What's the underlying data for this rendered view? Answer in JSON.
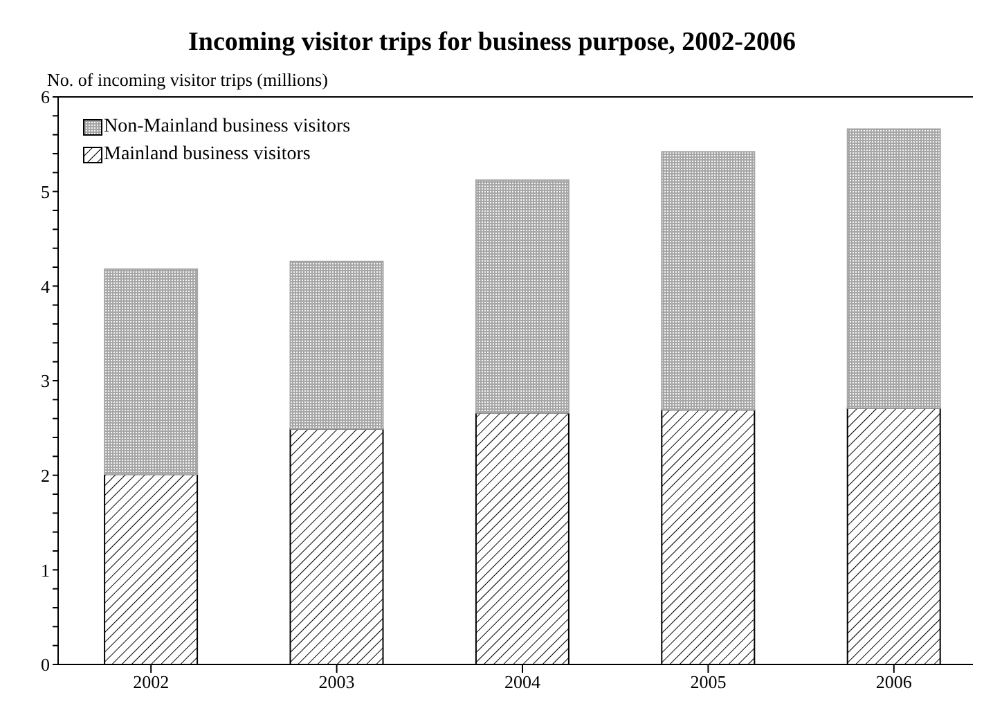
{
  "chart_data": {
    "type": "bar",
    "title": "Incoming visitor trips for business purpose, 2002-2006",
    "ylabel": "No. of incoming visitor trips (millions)",
    "categories": [
      "2002",
      "2003",
      "2004",
      "2005",
      "2006"
    ],
    "stacked": true,
    "series": [
      {
        "name": "Mainland business visitors",
        "color": "#000000",
        "values": [
          2.01,
          2.49,
          2.66,
          2.69,
          2.71
        ]
      },
      {
        "name": "Non-Mainland business visitors",
        "color": "#a6a6a6",
        "values": [
          2.17,
          1.77,
          2.46,
          2.73,
          2.95
        ]
      }
    ],
    "ylim": [
      0,
      6
    ],
    "yticks": [
      0,
      {
        "value": 0.2,
        "label": null
      },
      {
        "value": 0.4,
        "label": null
      },
      {
        "value": 0.6,
        "label": null
      },
      {
        "value": 0.8,
        "label": null
      },
      1,
      {
        "value": 1.2,
        "label": null
      },
      {
        "value": 1.4,
        "label": null
      },
      {
        "value": 1.6,
        "label": null
      },
      {
        "value": 1.8,
        "label": null
      },
      2,
      {
        "value": 2.2,
        "label": null
      },
      {
        "value": 2.4,
        "label": null
      },
      {
        "value": 2.6,
        "label": null
      },
      {
        "value": 2.8,
        "label": null
      },
      3,
      {
        "value": 3.2,
        "label": null
      },
      {
        "value": 3.4,
        "label": null
      },
      {
        "value": 3.6,
        "label": null
      },
      {
        "value": 3.8,
        "label": null
      },
      4,
      {
        "value": 4.2,
        "label": null
      },
      {
        "value": 4.4,
        "label": null
      },
      {
        "value": 4.6,
        "label": null
      },
      {
        "value": 4.8,
        "label": null
      },
      5,
      {
        "value": 5.2,
        "label": null
      },
      {
        "value": 5.4,
        "label": null
      },
      {
        "value": 5.6,
        "label": null
      },
      {
        "value": 5.8,
        "label": null
      },
      6
    ],
    "grid": false,
    "legend": "top left"
  }
}
